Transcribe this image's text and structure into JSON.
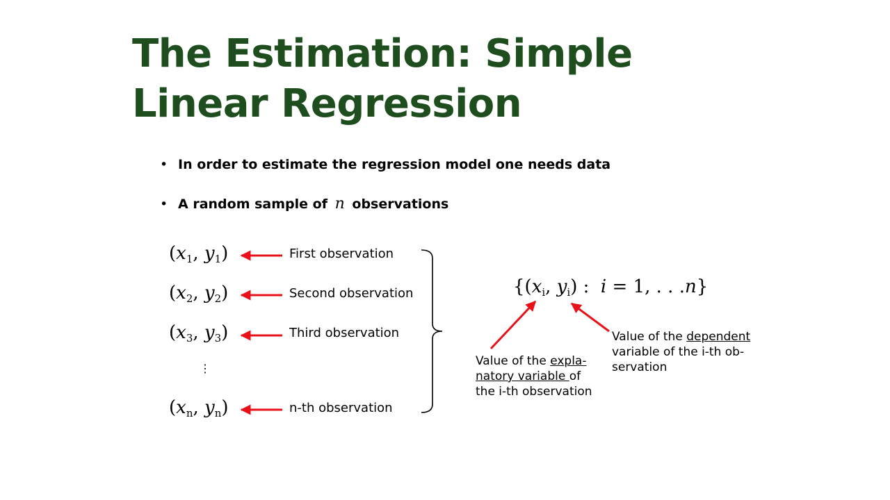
{
  "slide": {
    "title_line1": "The Estimation: Simple",
    "title_line2": "Linear Regression",
    "bullets": [
      {
        "text": "In order to estimate the regression model one needs data"
      },
      {
        "pre": "A random sample of",
        "math": "n",
        "post": "observations"
      }
    ],
    "bullet_glyph": "•"
  },
  "observations": [
    {
      "x": "x",
      "y": "y",
      "sub": "1",
      "label": "First observation"
    },
    {
      "x": "x",
      "y": "y",
      "sub": "2",
      "label": "Second observation"
    },
    {
      "x": "x",
      "y": "y",
      "sub": "3",
      "label": "Third observation"
    },
    {
      "x": "x",
      "y": "y",
      "sub": "n",
      "label": "n-th observation"
    }
  ],
  "vdots": "⋮",
  "set_notation": {
    "open": "{(",
    "x": "x",
    "y": "y",
    "sub": "i",
    "close": ") :",
    "index": "i",
    "equals": "= 1, . . .",
    "end": "n",
    "brace_close": "}"
  },
  "notes": {
    "explanatory": {
      "line1_pre": "Value of the ",
      "line1_u": "expla-",
      "line2_u": "natory variable ",
      "line2_post": "of",
      "line3": "the i-th observation"
    },
    "dependent": {
      "line1_pre": "Value of the ",
      "line1_u": "dependent",
      "line2": "variable of the i-th ob-",
      "line3": "servation"
    }
  },
  "colors": {
    "title": "#1e4d1e",
    "arrow": "#e8111a",
    "brace": "#000000"
  }
}
